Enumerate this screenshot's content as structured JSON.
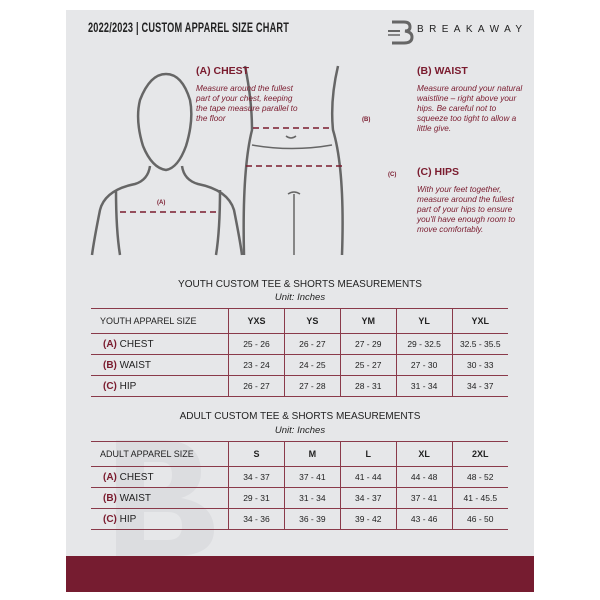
{
  "header": {
    "title": "2022/2023  |  CUSTOM APPAREL SIZE CHART",
    "brand": "BREAKAWAY"
  },
  "guide": {
    "chest": {
      "heading": "(A) CHEST",
      "text": "Measure around the fullest part of your chest, keeping the tape measure parallel to the floor",
      "tag": "(A)"
    },
    "waist": {
      "heading": "(B) WAIST",
      "text": "Measure around your natural waistline – right above your hips. Be careful not to squeeze too tight to allow a little give.",
      "tag": "(B)"
    },
    "hips": {
      "heading": "(C) HIPS",
      "text": "With your feet together, measure around the fullest part of your hips to ensure you'll have enough room to move comfortably.",
      "tag": "(C)"
    }
  },
  "youth": {
    "title": "YOUTH CUSTOM TEE & SHORTS MEASUREMENTS",
    "unit": "Unit: Inches",
    "header": [
      "YOUTH APPAREL SIZE",
      "YXS",
      "YS",
      "YM",
      "YL",
      "YXL"
    ],
    "rows": [
      {
        "code": "(A)",
        "label": "CHEST",
        "values": [
          "25 - 26",
          "26 - 27",
          "27 - 29",
          "29 - 32.5",
          "32.5 - 35.5"
        ]
      },
      {
        "code": "(B)",
        "label": "WAIST",
        "values": [
          "23 - 24",
          "24 - 25",
          "25 - 27",
          "27 - 30",
          "30 - 33"
        ]
      },
      {
        "code": "(C)",
        "label": "HIP",
        "values": [
          "26 - 27",
          "27 - 28",
          "28 - 31",
          "31 - 34",
          "34 - 37"
        ]
      }
    ]
  },
  "adult": {
    "title": "ADULT CUSTOM TEE & SHORTS MEASUREMENTS",
    "unit": "Unit: Inches",
    "header": [
      "ADULT APPAREL SIZE",
      "S",
      "M",
      "L",
      "XL",
      "2XL"
    ],
    "rows": [
      {
        "code": "(A)",
        "label": "CHEST",
        "values": [
          "34 - 37",
          "37 - 41",
          "41 - 44",
          "44 - 48",
          "48 - 52"
        ]
      },
      {
        "code": "(B)",
        "label": "WAIST",
        "values": [
          "29 - 31",
          "31 - 34",
          "34 - 37",
          "37 - 41",
          "41 - 45.5"
        ]
      },
      {
        "code": "(C)",
        "label": "HIP",
        "values": [
          "34 - 36",
          "36 - 39",
          "39 - 42",
          "43 - 46",
          "46 - 50"
        ]
      }
    ]
  },
  "colors": {
    "accent": "#761c30",
    "background": "#e6e7e9"
  }
}
